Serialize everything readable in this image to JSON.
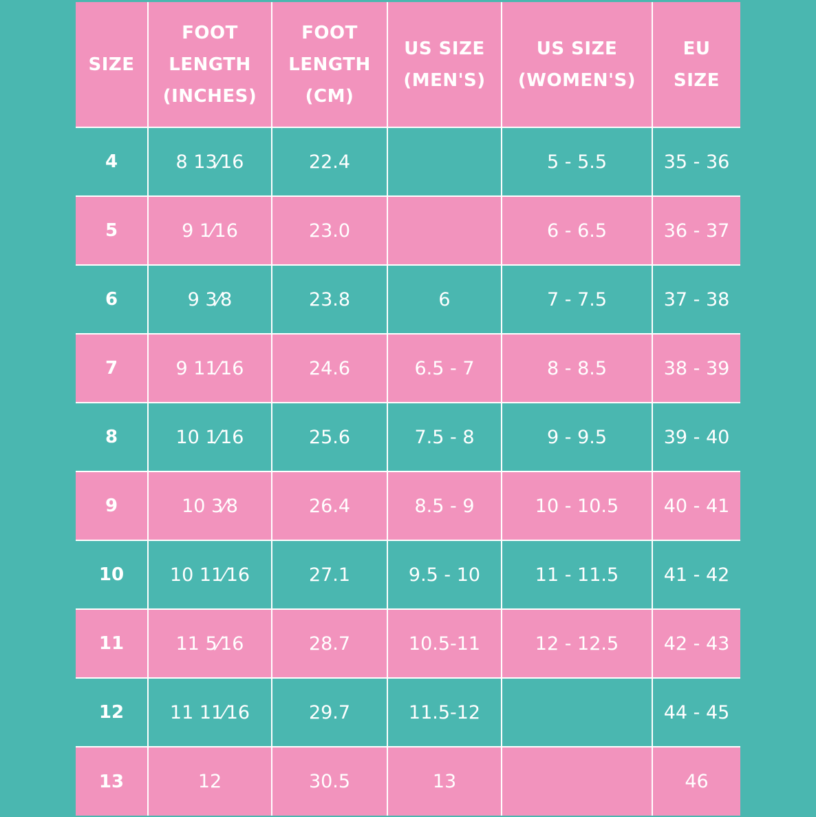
{
  "header": {
    "size": "SIZE",
    "foot_length_inches": "FOOT\nLENGTH\n(INCHES)",
    "foot_length_cm": "FOOT\nLENGTH\n(CM)",
    "us_size_mens": "US SIZE\n(MEN'S)",
    "us_size_womens": "US SIZE\n(WOMEN'S)",
    "eu_size": "EU\nSIZE"
  },
  "rows": [
    {
      "size": "4",
      "inches": "8 13⁄16",
      "cm": "22.4",
      "us_mens": "",
      "us_womens": "5 - 5.5",
      "eu": "35 - 36"
    },
    {
      "size": "5",
      "inches": "9 1⁄16",
      "cm": "23.0",
      "us_mens": "",
      "us_womens": "6 - 6.5",
      "eu": "36 - 37"
    },
    {
      "size": "6",
      "inches": "9 3⁄8",
      "cm": "23.8",
      "us_mens": "6",
      "us_womens": "7 - 7.5",
      "eu": "37 - 38"
    },
    {
      "size": "7",
      "inches": "9 11⁄16",
      "cm": "24.6",
      "us_mens": "6.5 - 7",
      "us_womens": "8 - 8.5",
      "eu": "38 - 39"
    },
    {
      "size": "8",
      "inches": "10 1⁄16",
      "cm": "25.6",
      "us_mens": "7.5 - 8",
      "us_womens": "9 - 9.5",
      "eu": "39 - 40"
    },
    {
      "size": "9",
      "inches": "10 3⁄8",
      "cm": "26.4",
      "us_mens": "8.5 - 9",
      "us_womens": "10 - 10.5",
      "eu": "40 - 41"
    },
    {
      "size": "10",
      "inches": "10 11⁄16",
      "cm": "27.1",
      "us_mens": "9.5 - 10",
      "us_womens": "11 - 11.5",
      "eu": "41 - 42"
    },
    {
      "size": "11",
      "inches": "11 5⁄16",
      "cm": "28.7",
      "us_mens": "10.5-11",
      "us_womens": "12 - 12.5",
      "eu": "42 - 43"
    },
    {
      "size": "12",
      "inches": "11 11⁄16",
      "cm": "29.7",
      "us_mens": "11.5-12",
      "us_womens": "",
      "eu": "44 - 45"
    },
    {
      "size": "13",
      "inches": "12",
      "cm": "30.5",
      "us_mens": "13",
      "us_womens": "",
      "eu": "46"
    }
  ],
  "colors": {
    "pink": "#f293bd",
    "teal": "#4ab7b0",
    "text": "#ffffff"
  }
}
